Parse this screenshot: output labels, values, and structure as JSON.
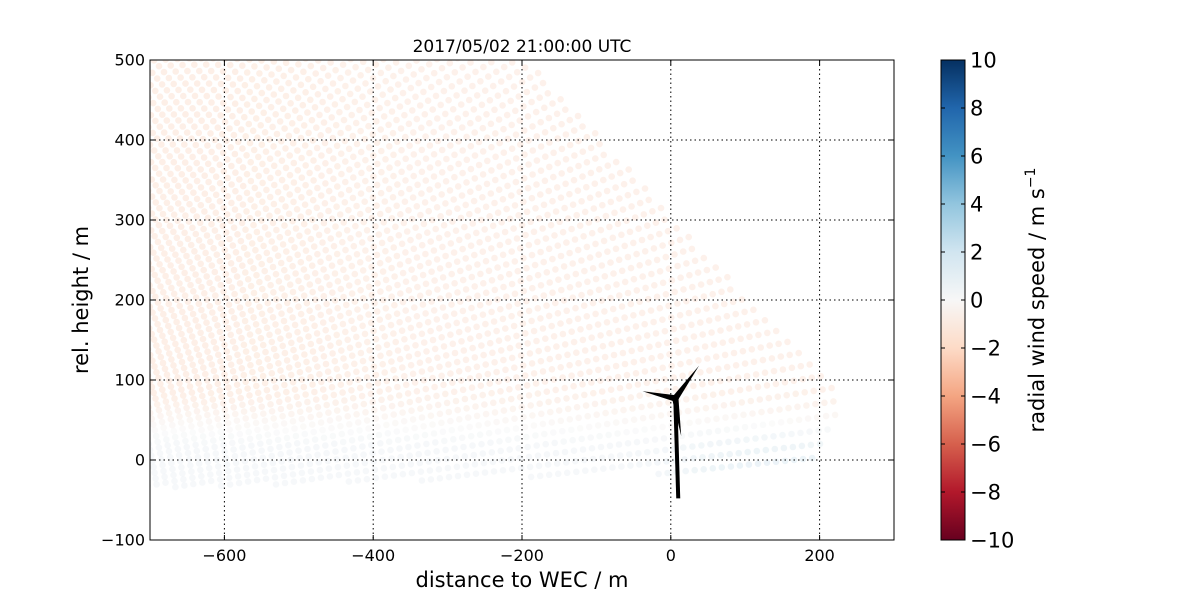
{
  "chart_data": {
    "type": "scatter",
    "title": "2017/05/02 21:00:00 UTC",
    "xlabel": "distance to WEC / m",
    "ylabel": "rel. height / m",
    "xlim": [
      -700,
      300
    ],
    "ylim": [
      -100,
      500
    ],
    "x_ticks": [
      -600,
      -400,
      -200,
      0,
      200
    ],
    "x_tick_labels": [
      "−600",
      "−400",
      "−200",
      "0",
      "200"
    ],
    "y_ticks": [
      -100,
      0,
      100,
      200,
      300,
      400,
      500
    ],
    "y_tick_labels": [
      "−100",
      "0",
      "100",
      "200",
      "300",
      "400",
      "500"
    ],
    "grid": true,
    "grid_style": "dotted",
    "colorbar": {
      "label": "radial wind speed / m s",
      "label_superscript": "−1",
      "range": [
        -10,
        10
      ],
      "ticks": [
        -10,
        -8,
        -6,
        -4,
        -2,
        0,
        2,
        4,
        6,
        8,
        10
      ],
      "tick_labels": [
        "−10",
        "−8",
        "−6",
        "−4",
        "−2",
        "0",
        "2",
        "4",
        "6",
        "8",
        "10"
      ],
      "colormap": "RdBu",
      "colormap_stops": [
        "#67001f",
        "#b2182b",
        "#d6604d",
        "#f4a582",
        "#fddbc7",
        "#f7f7f7",
        "#d1e5f0",
        "#92c5de",
        "#4393c3",
        "#2166ac",
        "#053061"
      ]
    },
    "scan": {
      "description": "lidar RHI scan points colored by radial wind speed",
      "x_range": [
        -700,
        235
      ],
      "y_range": [
        -35,
        500
      ],
      "upper_region_speed": -1.2,
      "lower_region_speed": 0.5,
      "near_turbine_speed": 1.5
    },
    "turbine": {
      "tower_base": [
        10,
        -48
      ],
      "hub": [
        6,
        77
      ],
      "blade_tips": [
        [
          -38,
          86
        ],
        [
          38,
          118
        ],
        [
          14,
          30
        ]
      ]
    }
  }
}
